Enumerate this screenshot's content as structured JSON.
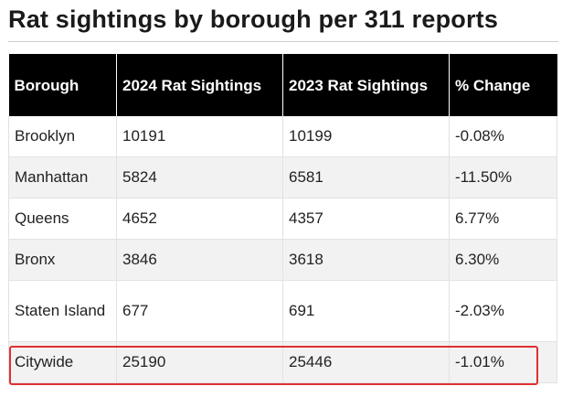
{
  "title": "Rat sightings by borough per 311 reports",
  "table": {
    "headers": [
      "Borough",
      "2024 Rat Sightings",
      "2023 Rat Sightings",
      "% Change"
    ],
    "rows": [
      [
        "Brooklyn",
        "10191",
        "10199",
        "-0.08%"
      ],
      [
        "Manhattan",
        "5824",
        "6581",
        "-11.50%"
      ],
      [
        "Queens",
        "4652",
        "4357",
        "6.77%"
      ],
      [
        "Bronx",
        "3846",
        "3618",
        "6.30%"
      ],
      [
        "Staten Island",
        "677",
        "691",
        "-2.03%"
      ],
      [
        "Citywide",
        "25190",
        "25446",
        "-1.01%"
      ]
    ]
  },
  "highlight": {
    "row": "Citywide",
    "color": "#e03030"
  },
  "colors": {
    "header_bg": "#000000",
    "header_text": "#ffffff",
    "stripe": "#f2f2f2"
  }
}
